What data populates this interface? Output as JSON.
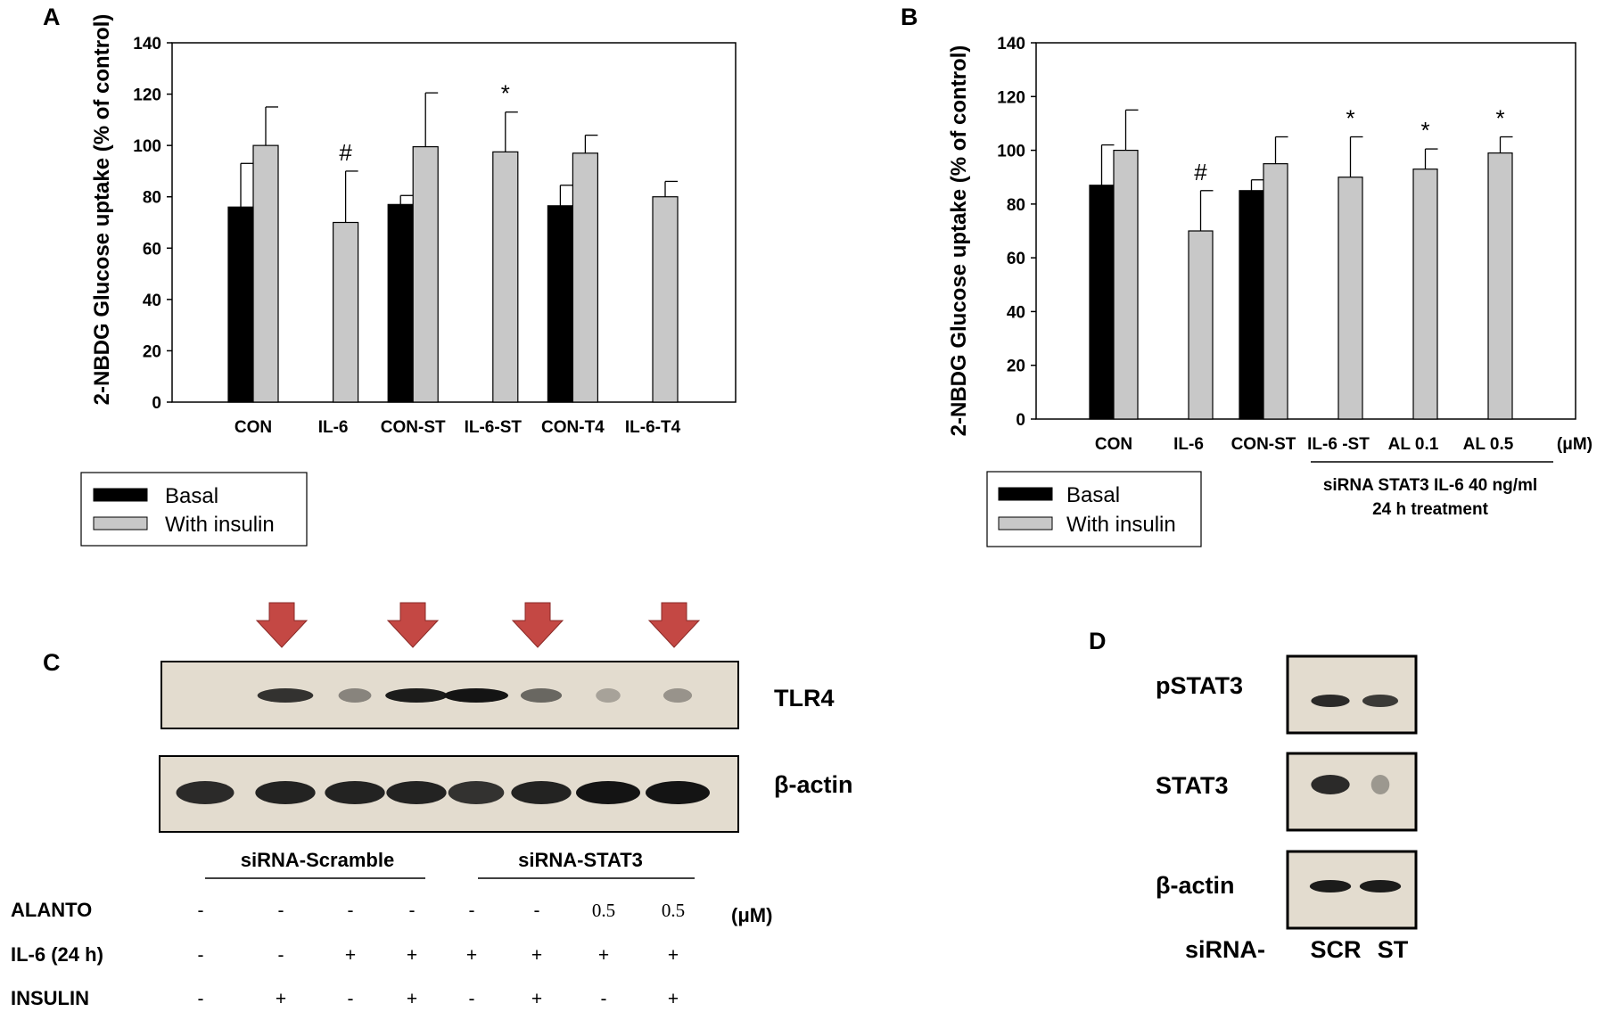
{
  "colors": {
    "basal": "#000000",
    "with_insulin": "#c8c8c8",
    "blot_bg": "#e3dccf",
    "band": "#141414",
    "arrow": "#c44844"
  },
  "chart_data": [
    {
      "panel": "A",
      "type": "bar",
      "ylabel": "2-NBDG Glucose uptake (% of control)",
      "ylim": [
        0,
        140
      ],
      "yticks": [
        0,
        20,
        40,
        60,
        80,
        100,
        120,
        140
      ],
      "categories": [
        "CON",
        "IL-6",
        "CON-ST",
        "IL-6-ST",
        "CON-T4",
        "IL-6-T4"
      ],
      "series": [
        {
          "name": "Basal",
          "values": [
            76,
            null,
            77,
            null,
            76.5,
            null
          ],
          "errors": [
            17,
            null,
            3.5,
            null,
            8,
            null
          ]
        },
        {
          "name": "With insulin",
          "values": [
            100,
            70,
            99.5,
            97.5,
            97,
            80
          ],
          "errors": [
            15,
            20,
            21,
            15.5,
            7,
            6
          ]
        }
      ],
      "annotations": [
        {
          "category": "IL-6",
          "text": "#"
        },
        {
          "category": "IL-6-ST",
          "text": "*"
        }
      ],
      "legend": [
        "Basal",
        "With insulin"
      ]
    },
    {
      "panel": "B",
      "type": "bar",
      "ylabel": "2-NBDG Glucose uptake (% of control)",
      "ylim": [
        0,
        140
      ],
      "yticks": [
        0,
        20,
        40,
        60,
        80,
        100,
        120,
        140
      ],
      "categories": [
        "CON",
        "IL-6",
        "CON-ST",
        "IL-6 -ST",
        "AL 0.1",
        "AL 0.5"
      ],
      "unit_label": "(μM)",
      "series": [
        {
          "name": "Basal",
          "values": [
            87,
            null,
            85,
            null,
            null,
            null
          ],
          "errors": [
            15,
            null,
            4,
            null,
            null,
            null
          ]
        },
        {
          "name": "With insulin",
          "values": [
            100,
            70,
            95,
            90,
            93,
            99
          ],
          "errors": [
            15,
            15,
            10,
            15,
            7.5,
            6
          ]
        }
      ],
      "annotations": [
        {
          "category": "IL-6",
          "text": "#"
        },
        {
          "category": "IL-6 -ST",
          "text": "*"
        },
        {
          "category": "AL 0.1",
          "text": "*"
        },
        {
          "category": "AL 0.5",
          "text": "*"
        }
      ],
      "group_label_line1": "siRNA STAT3 IL-6 40 ng/ml",
      "group_label_line2": "24 h treatment",
      "legend": [
        "Basal",
        "With insulin"
      ]
    }
  ],
  "panel_labels": {
    "a": "A",
    "b": "B",
    "c": "C",
    "d": "D"
  },
  "legend": {
    "basal": "Basal",
    "with_insulin": "With insulin"
  },
  "blot_c": {
    "rows": [
      {
        "label": "TLR4",
        "band_intensity": [
          0,
          0.8,
          0.25,
          0.95,
          1,
          0.45,
          0.05,
          0.15
        ]
      },
      {
        "label": "β-actin",
        "band_intensity": [
          0.85,
          0.9,
          0.9,
          0.9,
          0.8,
          0.9,
          1,
          1
        ]
      }
    ],
    "arrow_lanes": [
      2,
      4,
      6,
      8
    ],
    "groups": [
      "siRNA-Scramble",
      "siRNA-STAT3"
    ],
    "conditions": [
      {
        "label": "ALANTO",
        "values": [
          "-",
          "-",
          "-",
          "-",
          "-",
          "-",
          "0.5",
          "0.5"
        ],
        "unit": "(μM)"
      },
      {
        "label": "IL-6 (24 h)",
        "values": [
          "-",
          "-",
          "+",
          "+",
          "+",
          "+",
          "+",
          "+"
        ],
        "unit": ""
      },
      {
        "label": "INSULIN",
        "values": [
          "-",
          "+",
          "-",
          "+",
          "-",
          "+",
          "-",
          "+"
        ],
        "unit": ""
      }
    ]
  },
  "blot_d": {
    "rows": [
      {
        "label": "pSTAT3",
        "band_intensity": [
          0.85,
          0.75
        ]
      },
      {
        "label": "STAT3",
        "band_intensity": [
          0.85,
          0.12
        ]
      },
      {
        "label": "β-actin",
        "band_intensity": [
          0.95,
          0.95
        ]
      }
    ],
    "lane_prefix": "siRNA-",
    "lanes": [
      "SCR",
      "ST"
    ]
  }
}
